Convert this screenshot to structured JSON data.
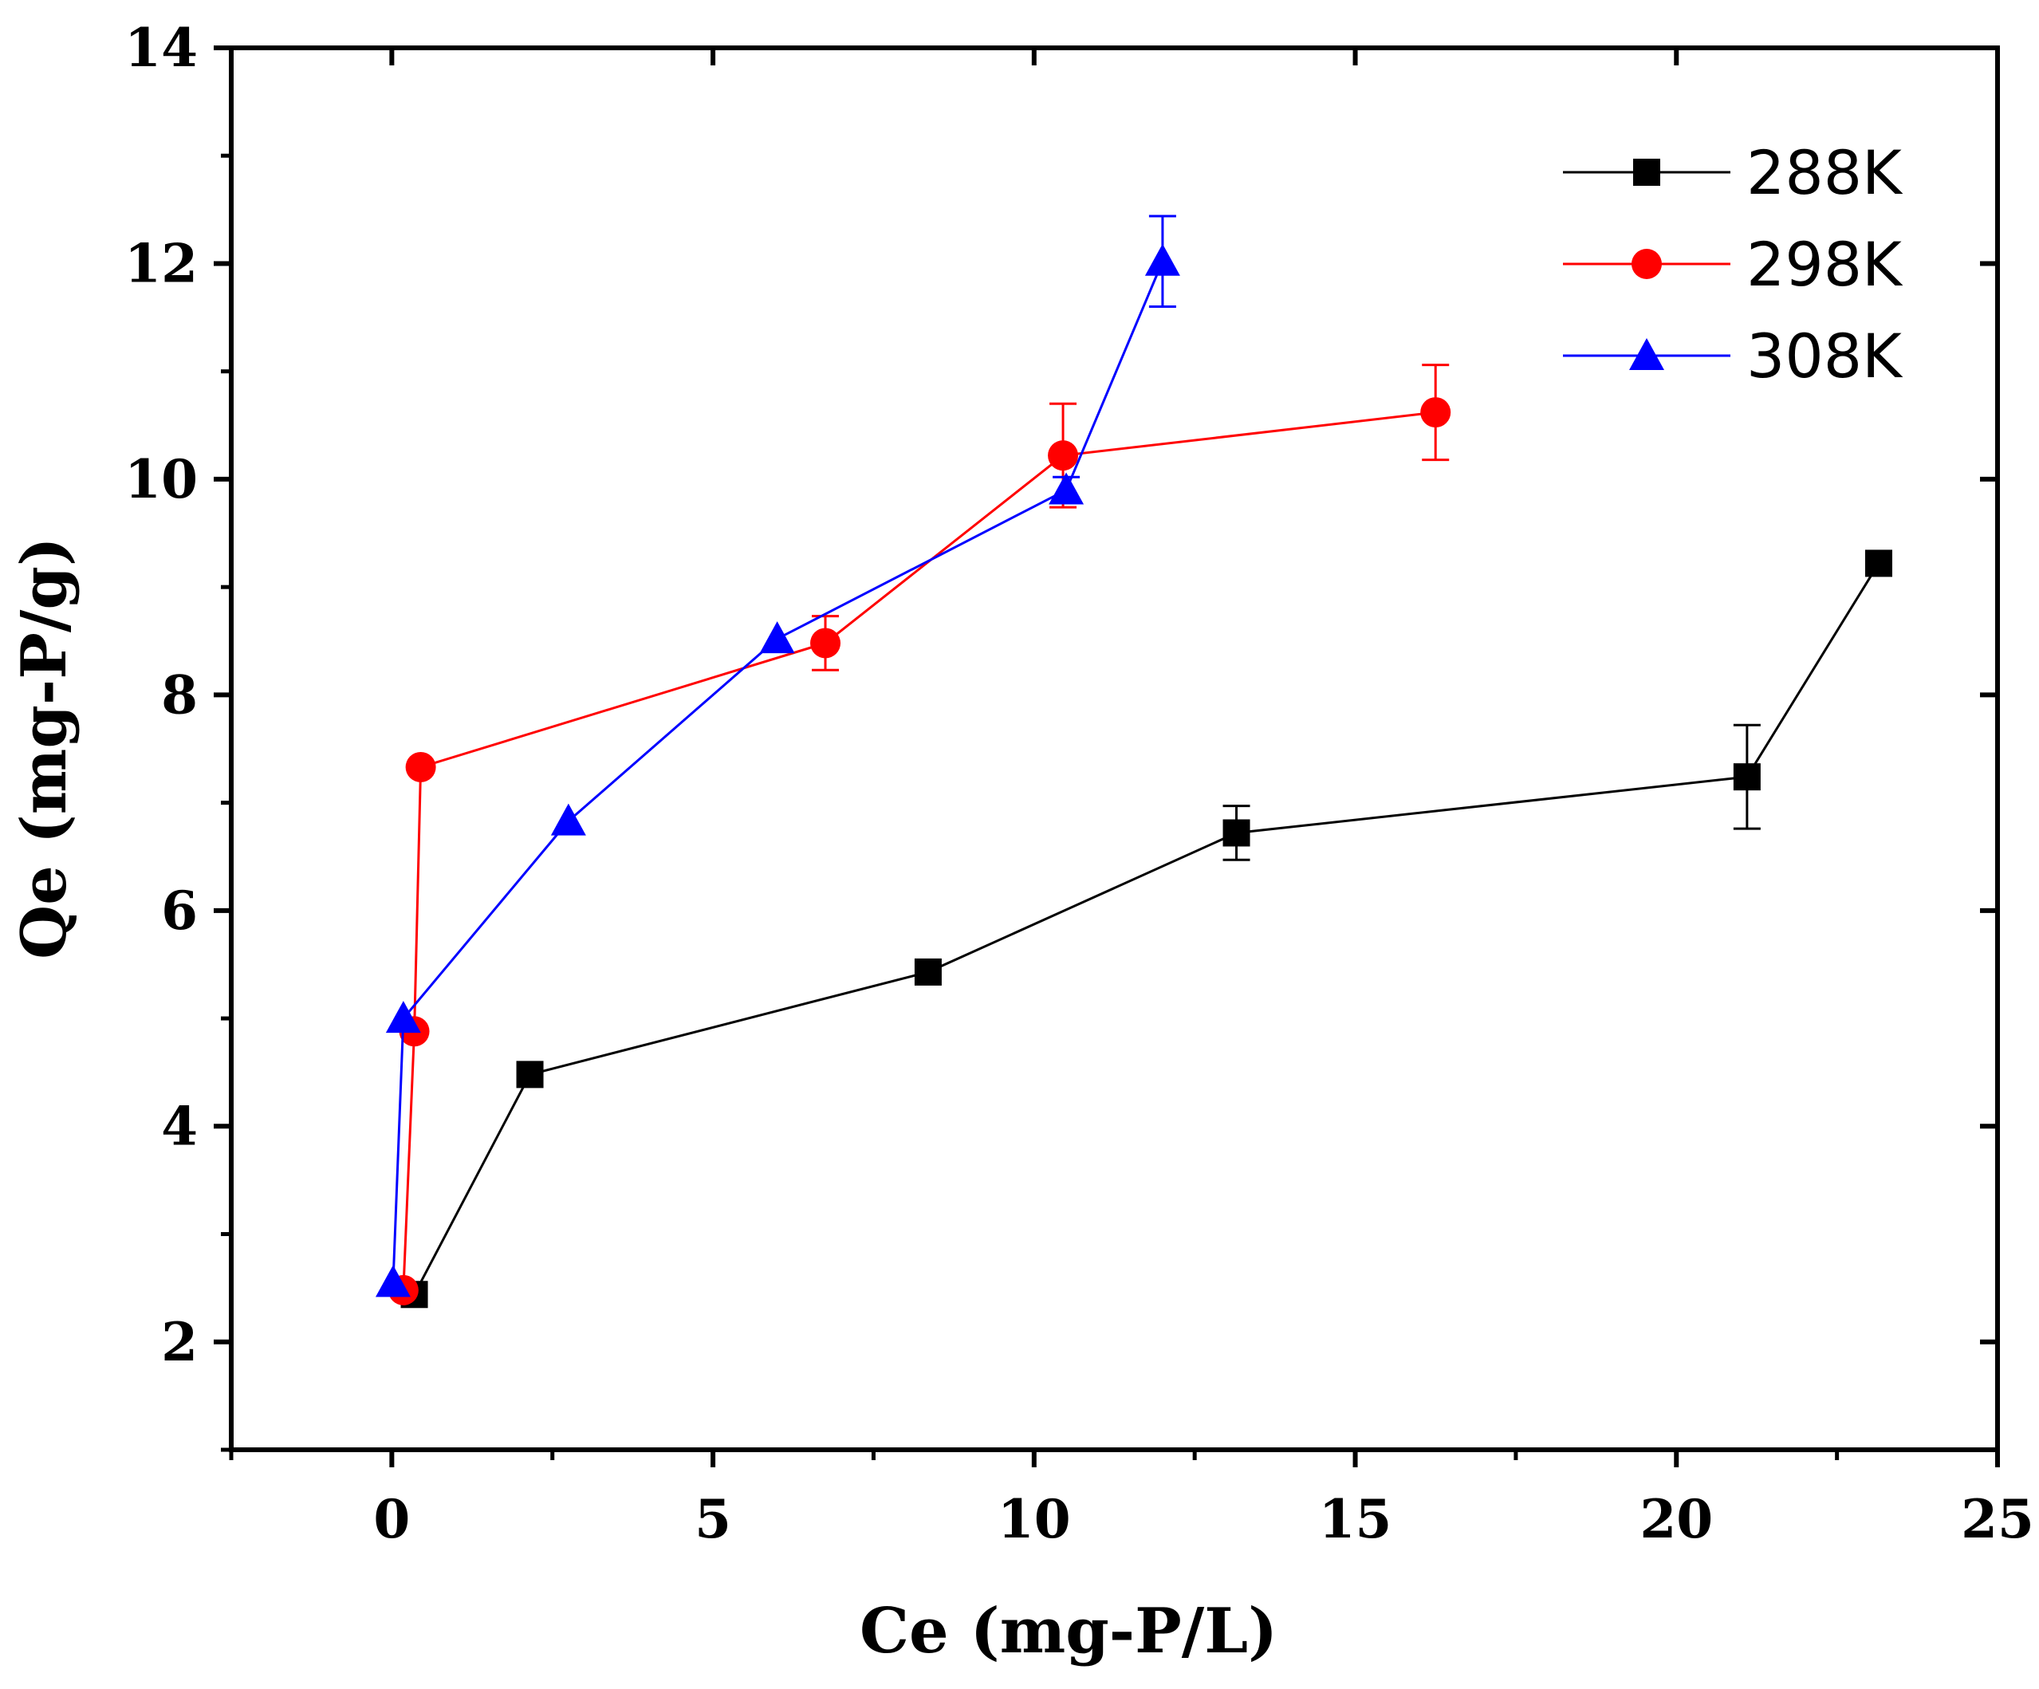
{
  "chart_data": {
    "type": "line",
    "xlabel": "Ce (mg-P/L)",
    "ylabel": "Qe (mg-P/g)",
    "xlim": [
      -2.5,
      25
    ],
    "ylim": [
      1,
      14
    ],
    "x_ticks": [
      0,
      5,
      10,
      15,
      20,
      25
    ],
    "x_tick_labels": [
      "0",
      "5",
      "10",
      "15",
      "20",
      "25"
    ],
    "y_ticks": [
      2,
      4,
      6,
      8,
      10,
      12,
      14
    ],
    "y_tick_labels": [
      "2",
      "4",
      "6",
      "8",
      "10",
      "12",
      "14"
    ],
    "grid": false,
    "legend_position": "top-right",
    "series": [
      {
        "name": "288K",
        "color": "#000000",
        "marker": "square",
        "x": [
          0.35,
          2.15,
          8.35,
          13.15,
          21.1,
          23.15
        ],
        "y": [
          2.44,
          4.48,
          5.43,
          6.72,
          7.24,
          9.22
        ],
        "err": [
          0,
          0,
          0,
          0.25,
          0.48,
          0
        ]
      },
      {
        "name": "298K",
        "color": "#ff0000",
        "marker": "circle",
        "x": [
          0.18,
          0.35,
          0.45,
          6.75,
          10.45,
          16.25
        ],
        "y": [
          2.48,
          4.88,
          7.33,
          8.48,
          10.22,
          10.62
        ],
        "err": [
          0,
          0,
          0,
          0.25,
          0.48,
          0.44
        ]
      },
      {
        "name": "308K",
        "color": "#0000ff",
        "marker": "triangle",
        "x": [
          0.02,
          0.18,
          2.75,
          6.0,
          10.5,
          12.0
        ],
        "y": [
          2.55,
          5.0,
          6.83,
          8.52,
          9.9,
          12.02
        ],
        "err": [
          0,
          0,
          0,
          0,
          0.12,
          0.42
        ]
      }
    ]
  }
}
